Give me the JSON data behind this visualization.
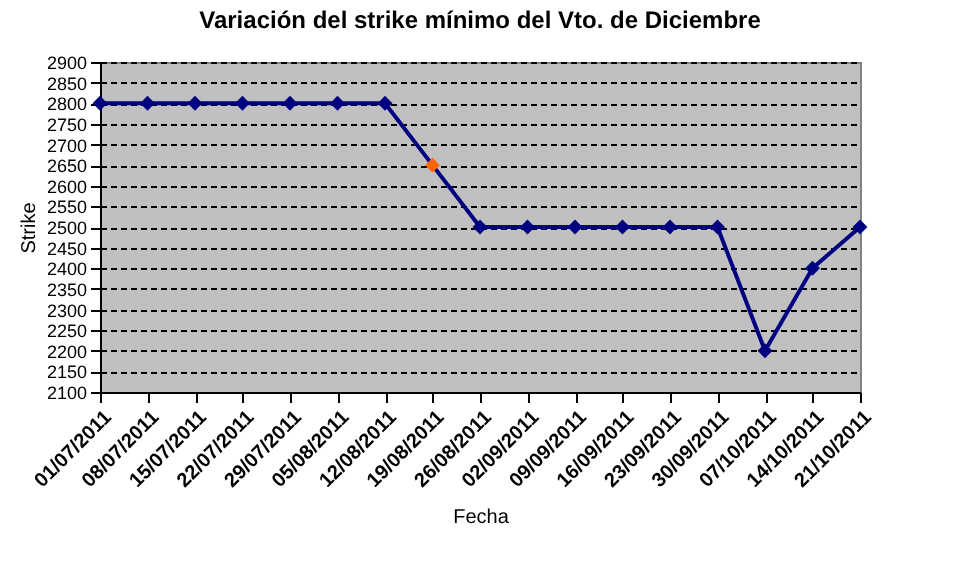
{
  "chart_data": {
    "type": "line",
    "title": "Variación del strike mínimo del Vto. de Diciembre",
    "xlabel": "Fecha",
    "ylabel": "Strike",
    "categories": [
      "01/07/2011",
      "08/07/2011",
      "15/07/2011",
      "22/07/2011",
      "29/07/2011",
      "05/08/2011",
      "12/08/2011",
      "19/08/2011",
      "26/08/2011",
      "02/09/2011",
      "09/09/2011",
      "16/09/2011",
      "23/09/2011",
      "30/09/2011",
      "07/10/2011",
      "14/10/2011",
      "21/10/2011"
    ],
    "series": [
      {
        "color": "#000080",
        "values": [
          2800,
          2800,
          2800,
          2800,
          2800,
          2800,
          2800,
          2650,
          2500,
          2500,
          2500,
          2500,
          2500,
          2500,
          2200,
          2400,
          2500
        ],
        "colors": [
          "#000080",
          "#000080",
          "#000080",
          "#000080",
          "#000080",
          "#000080",
          "#000080",
          "#ff6600",
          "#000080",
          "#000080",
          "#000080",
          "#000080",
          "#000080",
          "#000080",
          "#000080",
          "#000080",
          "#000080"
        ]
      }
    ],
    "ylim": [
      2100,
      2900
    ],
    "yticks": [
      2100,
      2150,
      2200,
      2250,
      2300,
      2350,
      2400,
      2450,
      2500,
      2550,
      2600,
      2650,
      2700,
      2750,
      2800,
      2850,
      2900
    ],
    "grid": "y",
    "marker": "diamond",
    "line_style": "solid"
  }
}
